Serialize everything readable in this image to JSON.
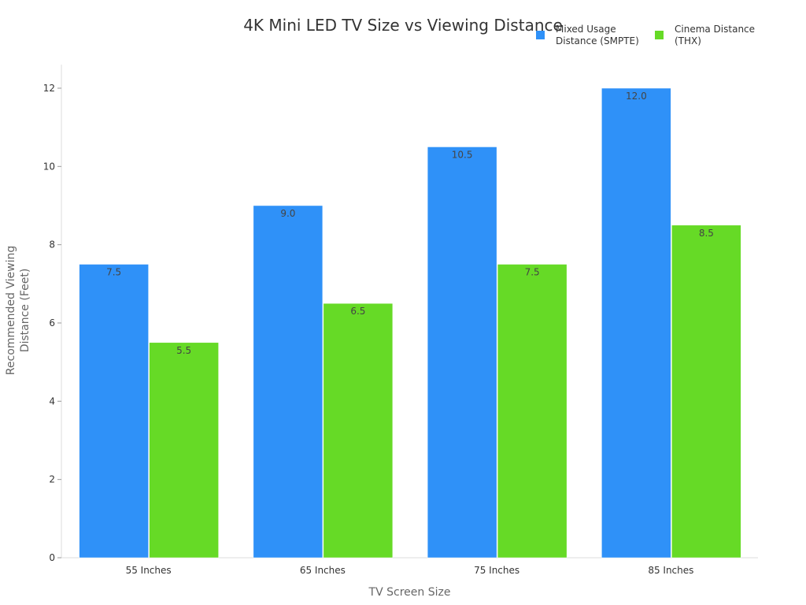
{
  "chart_data": {
    "type": "bar",
    "title": "4K Mini LED TV Size vs Viewing Distance",
    "xlabel": "TV Screen Size",
    "ylabel": "Recommended Viewing Distance (Feet)",
    "ylabel_lines": [
      "Recommended Viewing",
      "Distance (Feet)"
    ],
    "categories": [
      "55 Inches",
      "65 Inches",
      "75 Inches",
      "85 Inches"
    ],
    "series": [
      {
        "name": "Mixed Usage Distance (SMPTE)",
        "name_lines": [
          "Mixed Usage",
          "Distance (SMPTE)"
        ],
        "color": "#2F91F8",
        "values": [
          7.5,
          9.0,
          10.5,
          12.0
        ],
        "labels": [
          "7.5",
          "9.0",
          "10.5",
          "12.0"
        ]
      },
      {
        "name": "Cinema Distance (THX)",
        "name_lines": [
          "Cinema Distance",
          "(THX)"
        ],
        "color": "#66DA26",
        "values": [
          5.5,
          6.5,
          7.5,
          8.5
        ],
        "labels": [
          "5.5",
          "6.5",
          "7.5",
          "8.5"
        ]
      }
    ],
    "ylim": [
      0,
      12.6
    ],
    "yticks": [
      0,
      2,
      4,
      6,
      8,
      10,
      12
    ],
    "grid": false,
    "legend": "top-right"
  }
}
